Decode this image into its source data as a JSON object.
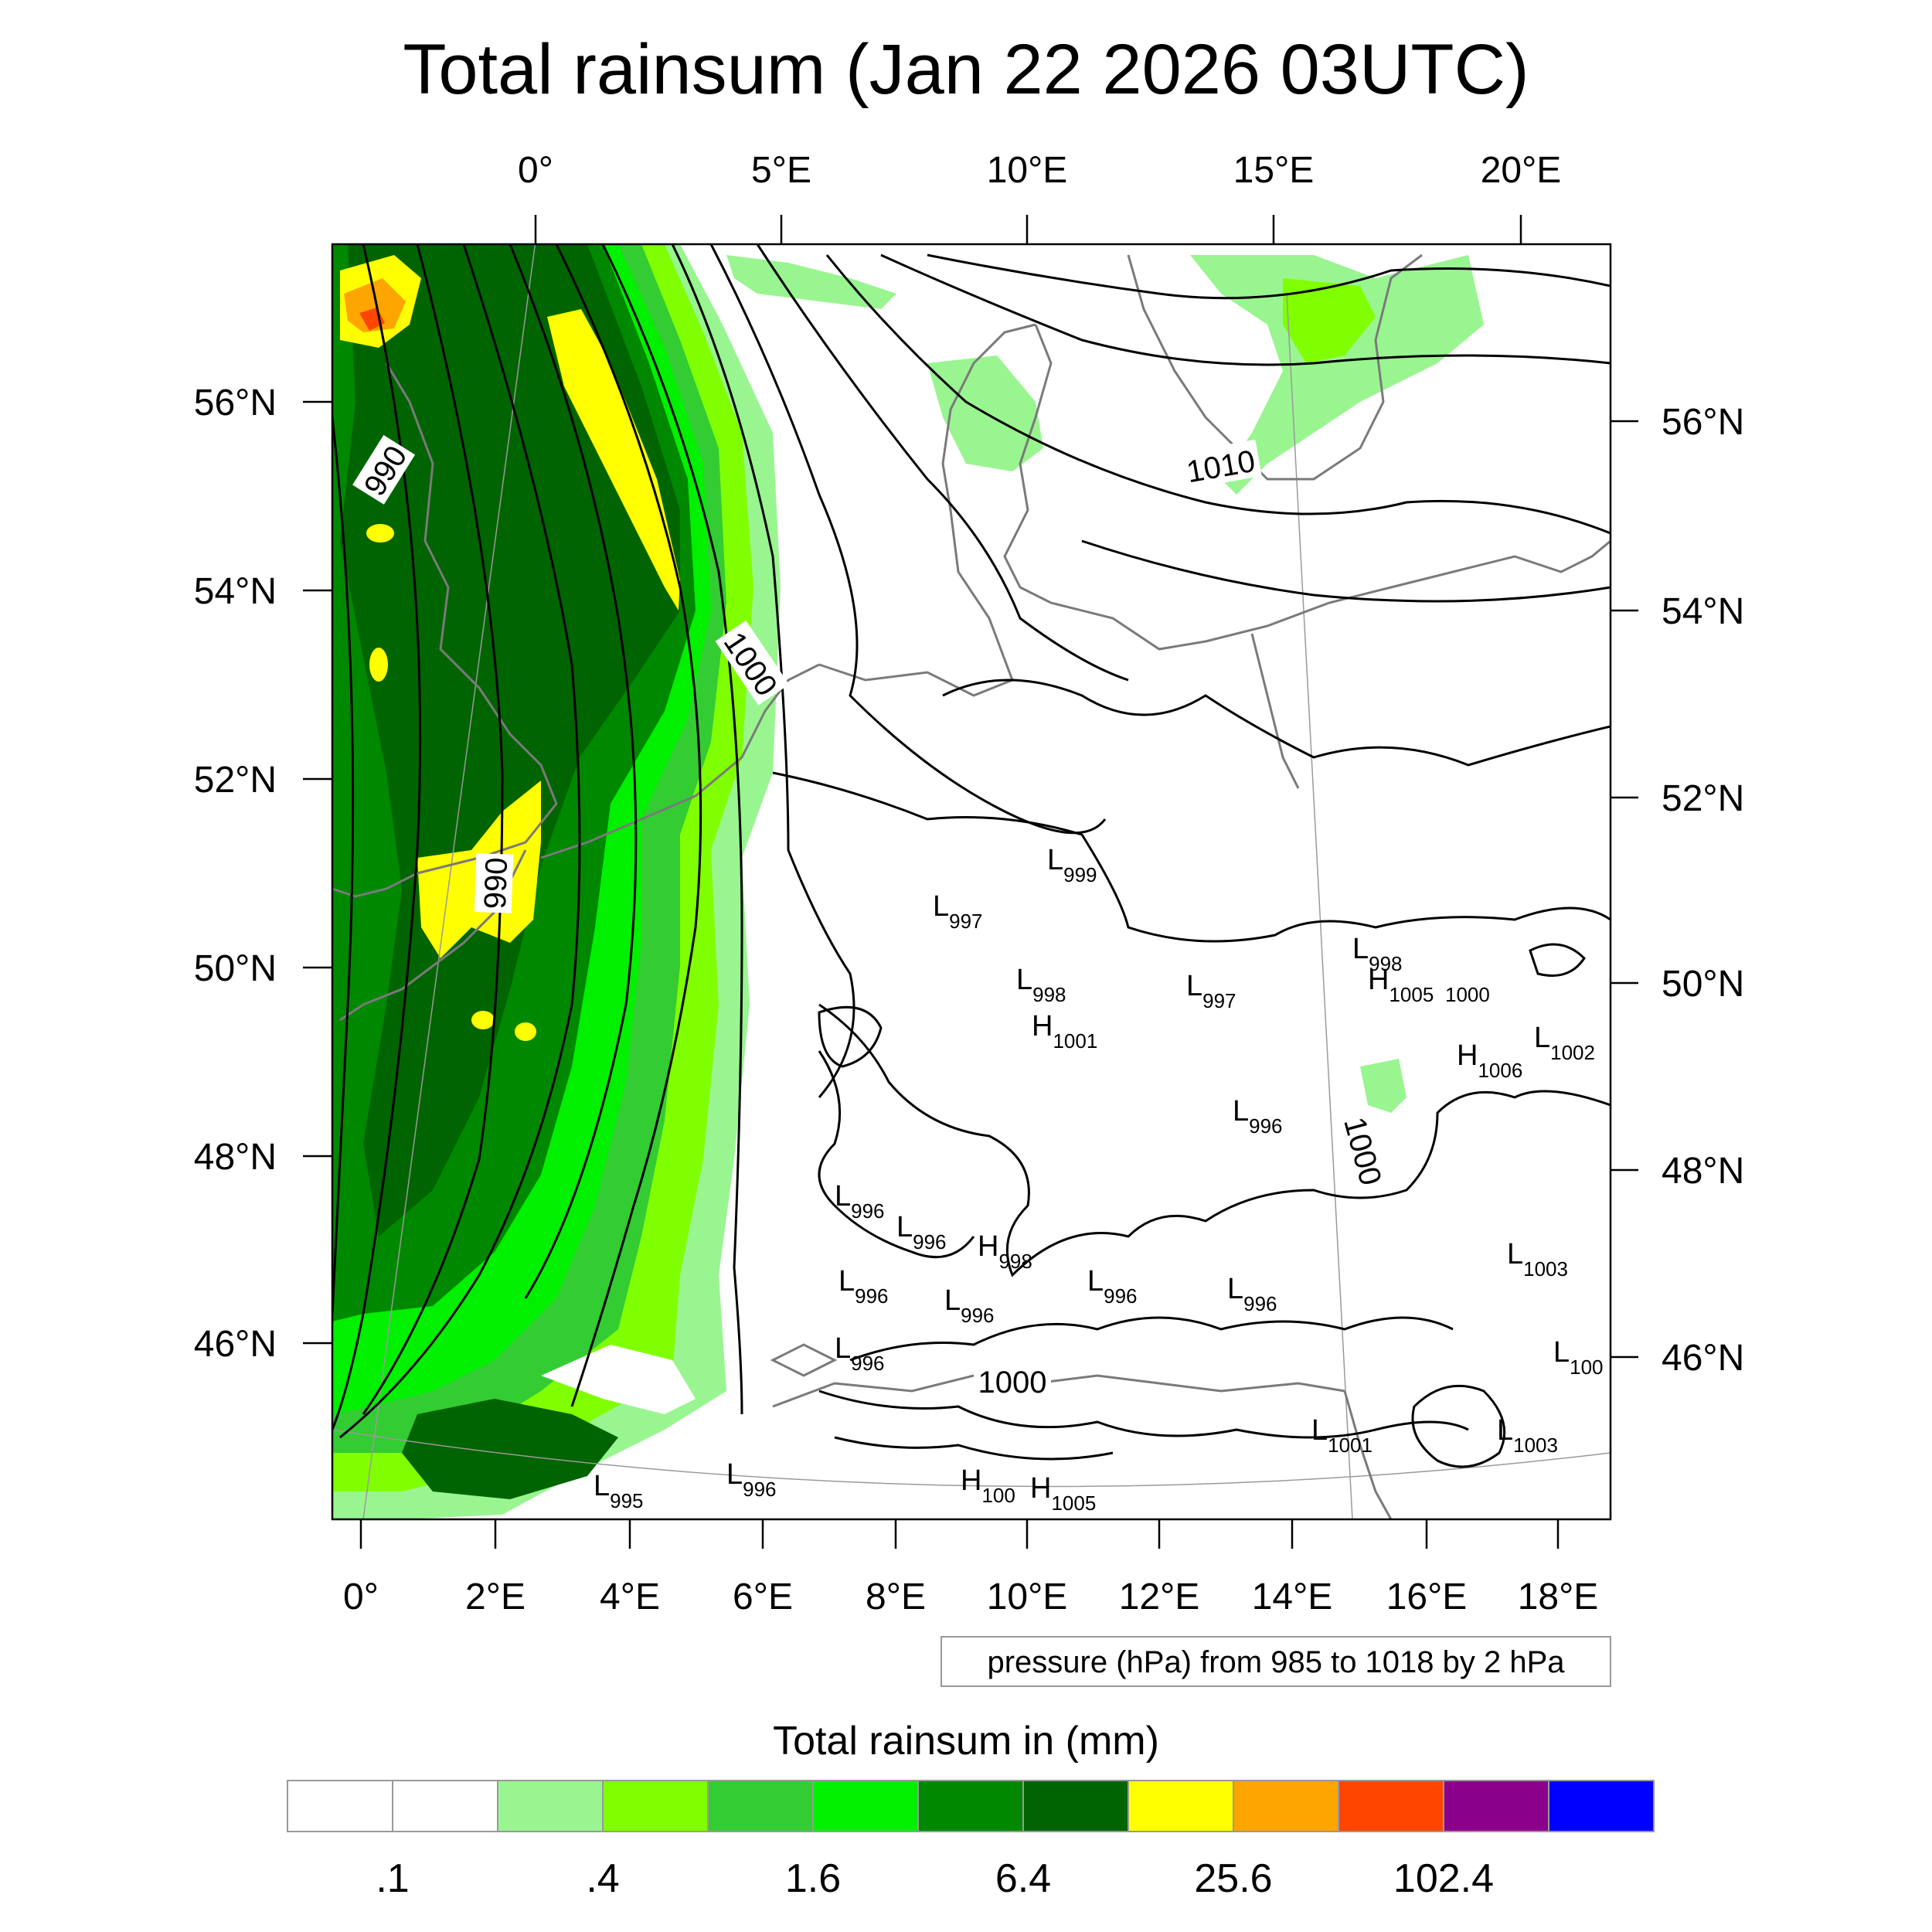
{
  "title": "Total rainsum (Jan 22 2026 03UTC)",
  "top_lon_labels": [
    "0°",
    "5°E",
    "10°E",
    "15°E",
    "20°E"
  ],
  "bottom_lon_labels": [
    "0°",
    "2°E",
    "4°E",
    "6°E",
    "8°E",
    "10°E",
    "12°E",
    "14°E",
    "16°E",
    "18°E"
  ],
  "left_lat_labels": [
    "56°N",
    "54°N",
    "52°N",
    "50°N",
    "48°N",
    "46°N"
  ],
  "right_lat_labels": [
    "56°N",
    "54°N",
    "52°N",
    "50°N",
    "48°N",
    "46°N"
  ],
  "contour_labels": [
    "990",
    "990",
    "1000",
    "1010",
    "1000",
    "1000"
  ],
  "pressure_centers": [
    {
      "t": "L",
      "v": "999"
    },
    {
      "t": "L",
      "v": "997"
    },
    {
      "t": "L",
      "v": "998"
    },
    {
      "t": "H",
      "v": "1005"
    },
    {
      "t": "L",
      "v": "998"
    },
    {
      "t": "L",
      "v": "997"
    },
    {
      "t": "H",
      "v": "1001"
    },
    {
      "t": "L",
      "v": "1002"
    },
    {
      "t": "H",
      "v": "1006"
    },
    {
      "t": "L",
      "v": "996"
    },
    {
      "t": "L",
      "v": "996"
    },
    {
      "t": "L",
      "v": "996"
    },
    {
      "t": "H",
      "v": "998"
    },
    {
      "t": "L",
      "v": "1003"
    },
    {
      "t": "L",
      "v": "996"
    },
    {
      "t": "L",
      "v": "996"
    },
    {
      "t": "L",
      "v": "996"
    },
    {
      "t": "L",
      "v": "996"
    },
    {
      "t": "L",
      "v": "996"
    },
    {
      "t": "L",
      "v": "100"
    },
    {
      "t": "L",
      "v": "1001"
    },
    {
      "t": "L",
      "v": "1003"
    },
    {
      "t": "L",
      "v": "996"
    },
    {
      "t": "L",
      "v": "995"
    },
    {
      "t": "H",
      "v": "100"
    },
    {
      "t": "H",
      "v": "1005"
    }
  ],
  "isobar_extra_label": "1000",
  "note": "pressure (hPa) from 985 to 1018 by 2 hPa",
  "colorbar": {
    "title": "Total rainsum in (mm)",
    "colors": [
      "#ffffff",
      "#ffffff",
      "#99f590",
      "#80ff00",
      "#33cc33",
      "#00f000",
      "#008800",
      "#006400",
      "#ffff00",
      "#ffa500",
      "#ff4500",
      "#8b008b",
      "#0000ff"
    ],
    "labels": [
      ".1",
      ".4",
      "1.6",
      "6.4",
      "25.6",
      "102.4"
    ]
  }
}
